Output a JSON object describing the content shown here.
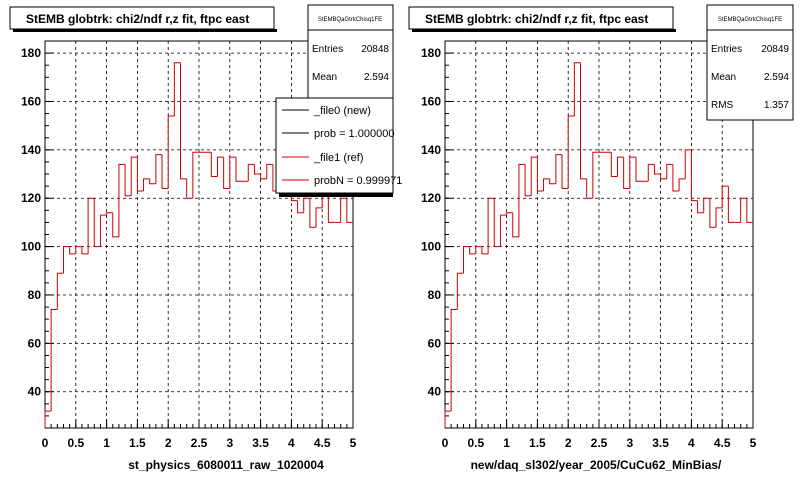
{
  "footer": "",
  "panels": [
    {
      "title": "StEMB globtrk: chi2/ndf r,z fit, ftpc east",
      "xtitle": "st_physics_6080011_raw_1020004",
      "stats": {
        "name": "StEMBQaGtrkChisq1FE",
        "rows": [
          {
            "label": "Entries",
            "value": "20848"
          },
          {
            "label": "Mean",
            "value": "2.594"
          }
        ]
      },
      "legend": [
        {
          "label": "_file0 (new)",
          "color": "#000000"
        },
        {
          "label": "prob = 1.000000",
          "color": "#000000"
        },
        {
          "label": "_file1 (ref)",
          "color": "#cc0000"
        },
        {
          "label": "probN = 0.999971",
          "color": "#cc0000"
        }
      ]
    },
    {
      "title": "StEMB globtrk: chi2/ndf r,z fit, ftpc east",
      "xtitle": "new/daq_sl302/year_2005/CuCu62_MinBias/",
      "stats": {
        "name": "StEMBQaGtrkChisq1FE",
        "rows": [
          {
            "label": "Entries",
            "value": "20849"
          },
          {
            "label": "Mean",
            "value": "2.594"
          },
          {
            "label": "RMS",
            "value": "1.357"
          }
        ]
      },
      "legend": []
    }
  ],
  "chart_data": [
    {
      "type": "bar",
      "title": "StEMB globtrk: chi2/ndf r,z fit, ftpc east",
      "xlabel": "st_physics_6080011_raw_1020004",
      "ylabel": "",
      "xlim": [
        0,
        5
      ],
      "ylim": [
        25,
        185
      ],
      "xticks": [
        "0",
        "0.5",
        "1",
        "1.5",
        "2",
        "2.5",
        "3",
        "3.5",
        "4",
        "4.5",
        "5"
      ],
      "yticks": [
        "40",
        "60",
        "80",
        "100",
        "120",
        "140",
        "160",
        "180"
      ],
      "grid": true,
      "bin_width": 0.1,
      "series": [
        {
          "name": "_file1 (ref)",
          "color": "#cc0000",
          "x": [
            0.0,
            0.1,
            0.2,
            0.3,
            0.4,
            0.5,
            0.6,
            0.7,
            0.8,
            0.9,
            1.0,
            1.1,
            1.2,
            1.3,
            1.4,
            1.5,
            1.6,
            1.7,
            1.8,
            1.9,
            2.0,
            2.1,
            2.2,
            2.3,
            2.4,
            2.5,
            2.6,
            2.7,
            2.8,
            2.9,
            3.0,
            3.1,
            3.2,
            3.3,
            3.4,
            3.5,
            3.6,
            3.7,
            3.8,
            3.9,
            4.0,
            4.1,
            4.2,
            4.3,
            4.4,
            4.5,
            4.6,
            4.7,
            4.8,
            4.9
          ],
          "values": [
            32,
            74,
            89,
            100,
            97,
            100,
            97,
            120,
            100,
            113,
            114,
            104,
            134,
            121,
            137,
            123,
            128,
            126,
            138,
            124,
            154,
            176,
            128,
            120,
            139,
            139,
            139,
            129,
            137,
            124,
            137,
            127,
            127,
            134,
            130,
            128,
            134,
            123,
            128,
            140,
            119,
            114,
            120,
            108,
            116,
            125,
            110,
            110,
            120,
            110
          ]
        }
      ]
    },
    {
      "type": "bar",
      "title": "StEMB globtrk: chi2/ndf r,z fit, ftpc east",
      "xlabel": "new/daq_sl302/year_2005/CuCu62_MinBias/",
      "ylabel": "",
      "xlim": [
        0,
        5
      ],
      "ylim": [
        25,
        185
      ],
      "xticks": [
        "0",
        "0.5",
        "1",
        "1.5",
        "2",
        "2.5",
        "3",
        "3.5",
        "4",
        "4.5",
        "5"
      ],
      "yticks": [
        "40",
        "60",
        "80",
        "100",
        "120",
        "140",
        "160",
        "180"
      ],
      "grid": true,
      "bin_width": 0.1,
      "series": [
        {
          "name": "_file1 (ref)",
          "color": "#cc0000",
          "x": [
            0.0,
            0.1,
            0.2,
            0.3,
            0.4,
            0.5,
            0.6,
            0.7,
            0.8,
            0.9,
            1.0,
            1.1,
            1.2,
            1.3,
            1.4,
            1.5,
            1.6,
            1.7,
            1.8,
            1.9,
            2.0,
            2.1,
            2.2,
            2.3,
            2.4,
            2.5,
            2.6,
            2.7,
            2.8,
            2.9,
            3.0,
            3.1,
            3.2,
            3.3,
            3.4,
            3.5,
            3.6,
            3.7,
            3.8,
            3.9,
            4.0,
            4.1,
            4.2,
            4.3,
            4.4,
            4.5,
            4.6,
            4.7,
            4.8,
            4.9
          ],
          "values": [
            32,
            74,
            89,
            100,
            97,
            100,
            97,
            120,
            100,
            113,
            114,
            104,
            134,
            121,
            137,
            123,
            128,
            126,
            138,
            124,
            154,
            176,
            128,
            120,
            139,
            139,
            139,
            129,
            137,
            124,
            137,
            127,
            127,
            134,
            130,
            128,
            134,
            123,
            128,
            140,
            119,
            114,
            120,
            108,
            116,
            125,
            110,
            110,
            120,
            110
          ]
        }
      ]
    }
  ]
}
